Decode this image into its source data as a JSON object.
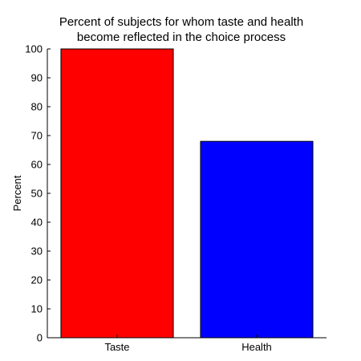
{
  "chart_data": {
    "type": "bar",
    "title_lines": [
      "Percent of subjects for whom taste and health",
      "become reflected in the choice process"
    ],
    "xlabel": "",
    "ylabel": "Percent",
    "categories": [
      "Taste",
      "Health"
    ],
    "values": [
      100,
      68
    ],
    "bar_colors": [
      "#ff0000",
      "#0000ff"
    ],
    "ylim": [
      0,
      100
    ],
    "yticks": [
      "0",
      "10",
      "20",
      "30",
      "40",
      "50",
      "60",
      "70",
      "80",
      "90",
      "100"
    ],
    "grid": false,
    "legend": "none"
  }
}
